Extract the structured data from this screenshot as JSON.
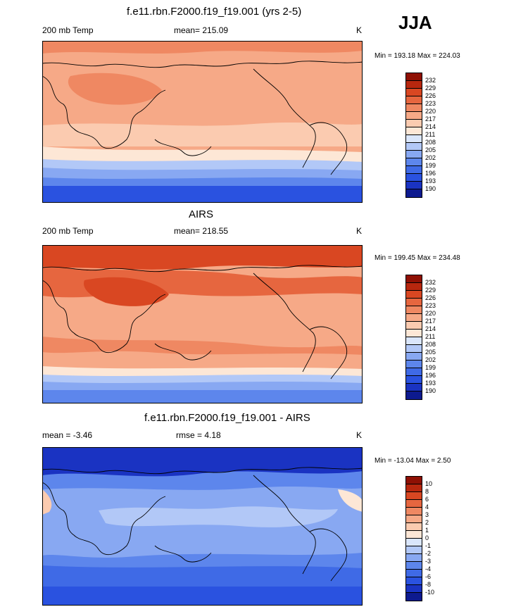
{
  "season": "JJA",
  "units": "K",
  "temp_palette": [
    "#0d1a8f",
    "#1a33c2",
    "#2a52e0",
    "#3f6ae6",
    "#5d86ec",
    "#88a8f2",
    "#b2c8f7",
    "#dae6fb",
    "#fde7d6",
    "#fbcbb0",
    "#f6a987",
    "#ef8862",
    "#e6663f",
    "#d94722",
    "#b8270e",
    "#8f1004"
  ],
  "temp_levels": [
    "190",
    "193",
    "196",
    "199",
    "202",
    "205",
    "208",
    "211",
    "214",
    "217",
    "220",
    "223",
    "226",
    "229",
    "232"
  ],
  "diff_palette": [
    "#0d1a8f",
    "#1a33c2",
    "#2a52e0",
    "#3f6ae6",
    "#5d86ec",
    "#88a8f2",
    "#b2c8f7",
    "#dae6fb",
    "#fde7d6",
    "#fbcbb0",
    "#f6a987",
    "#ef8862",
    "#e6663f",
    "#d94722",
    "#b8270e",
    "#8f1004"
  ],
  "diff_levels": [
    "-10",
    "-8",
    "-6",
    "-4",
    "-3",
    "-2",
    "-1",
    "0",
    "1",
    "2",
    "3",
    "4",
    "6",
    "8",
    "10"
  ],
  "panels": [
    {
      "title": "f.e11.rbn.F2000.f19_f19.001 (yrs 2-5)",
      "left_label": "200 mb Temp",
      "center_label": "mean= 215.09",
      "right_label": "K",
      "minmax": "Min = 193.18 Max = 224.03"
    },
    {
      "title": "AIRS",
      "left_label": "200 mb Temp",
      "center_label": "mean= 218.55",
      "right_label": "K",
      "minmax": "Min = 199.45 Max = 234.48"
    },
    {
      "title": "f.e11.rbn.F2000.f19_f19.001 - AIRS",
      "left_label": "mean =  -3.46",
      "center_label": "rmse =   4.18",
      "right_label": "K",
      "minmax": "Min = -13.04 Max =   2.50"
    }
  ],
  "chart_data": [
    {
      "type": "heatmap",
      "title": "f.e11.rbn.F2000.f19_f19.001 (yrs 2-5)",
      "variable": "200 mb Temp",
      "units": "K",
      "mean": 215.09,
      "min": 193.18,
      "max": 224.03,
      "contour_levels": [
        190,
        193,
        196,
        199,
        202,
        205,
        208,
        211,
        214,
        217,
        220,
        223,
        226,
        229,
        232
      ]
    },
    {
      "type": "heatmap",
      "title": "AIRS",
      "variable": "200 mb Temp",
      "units": "K",
      "mean": 218.55,
      "min": 199.45,
      "max": 234.48,
      "contour_levels": [
        190,
        193,
        196,
        199,
        202,
        205,
        208,
        211,
        214,
        217,
        220,
        223,
        226,
        229,
        232
      ]
    },
    {
      "type": "heatmap",
      "title": "f.e11.rbn.F2000.f19_f19.001 - AIRS",
      "units": "K",
      "mean": -3.46,
      "rmse": 4.18,
      "min": -13.04,
      "max": 2.5,
      "contour_levels": [
        -10,
        -8,
        -6,
        -4,
        -3,
        -2,
        -1,
        0,
        1,
        2,
        3,
        4,
        6,
        8,
        10
      ]
    }
  ]
}
